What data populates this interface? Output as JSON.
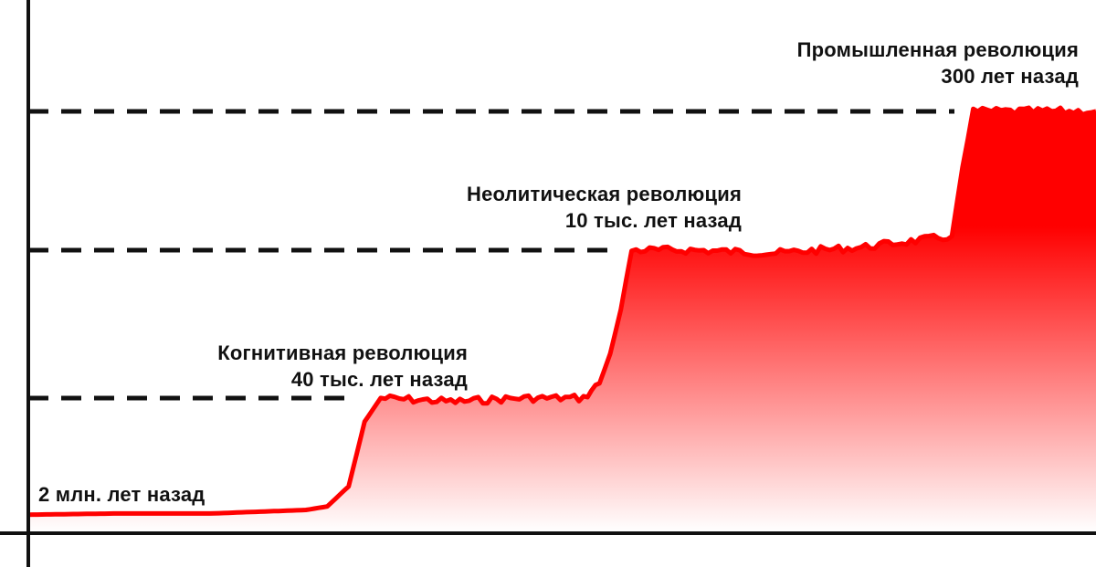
{
  "chart_data": {
    "type": "area",
    "title": "",
    "xlabel": "",
    "ylabel": "",
    "x_ticks": false,
    "y_ticks": false,
    "grid": false,
    "line_color": "#ff0000",
    "fill_gradient": [
      "#ff0000",
      "#ffffff"
    ],
    "dash_color": "#111111",
    "levels": [
      {
        "name": "base",
        "value": 0
      },
      {
        "name": "cognitive",
        "value": 1
      },
      {
        "name": "neolithic",
        "value": 2
      },
      {
        "name": "industrial",
        "value": 3
      }
    ],
    "annotations": [
      {
        "key": "start",
        "lines": [
          "2 млн. лет назад"
        ]
      },
      {
        "key": "cognitive",
        "lines": [
          "Когнитивная революция",
          "40 тыс. лет назад"
        ]
      },
      {
        "key": "neolithic",
        "lines": [
          "Неолитическая революция",
          "10 тыс. лет назад"
        ]
      },
      {
        "key": "industrial",
        "lines": [
          "Промышленная революция",
          "300 лет назад"
        ]
      }
    ],
    "series": [
      {
        "points": [
          [
            0,
            0.01
          ],
          [
            0.08,
            0.02
          ],
          [
            0.17,
            0.02
          ],
          [
            0.26,
            0.05
          ],
          [
            0.28,
            0.08
          ],
          [
            0.3,
            0.25
          ],
          [
            0.315,
            0.8
          ],
          [
            0.33,
            1.0
          ],
          [
            0.4,
            0.97
          ],
          [
            0.46,
            1.0
          ],
          [
            0.52,
            1.0
          ],
          [
            0.535,
            1.1
          ],
          [
            0.545,
            1.3
          ],
          [
            0.555,
            1.6
          ],
          [
            0.565,
            2.0
          ],
          [
            0.62,
            2.0
          ],
          [
            0.7,
            1.98
          ],
          [
            0.78,
            2.02
          ],
          [
            0.865,
            2.1
          ],
          [
            0.875,
            2.6
          ],
          [
            0.885,
            3.0
          ],
          [
            0.95,
            3.0
          ],
          [
            1.0,
            3.01
          ]
        ]
      }
    ]
  }
}
